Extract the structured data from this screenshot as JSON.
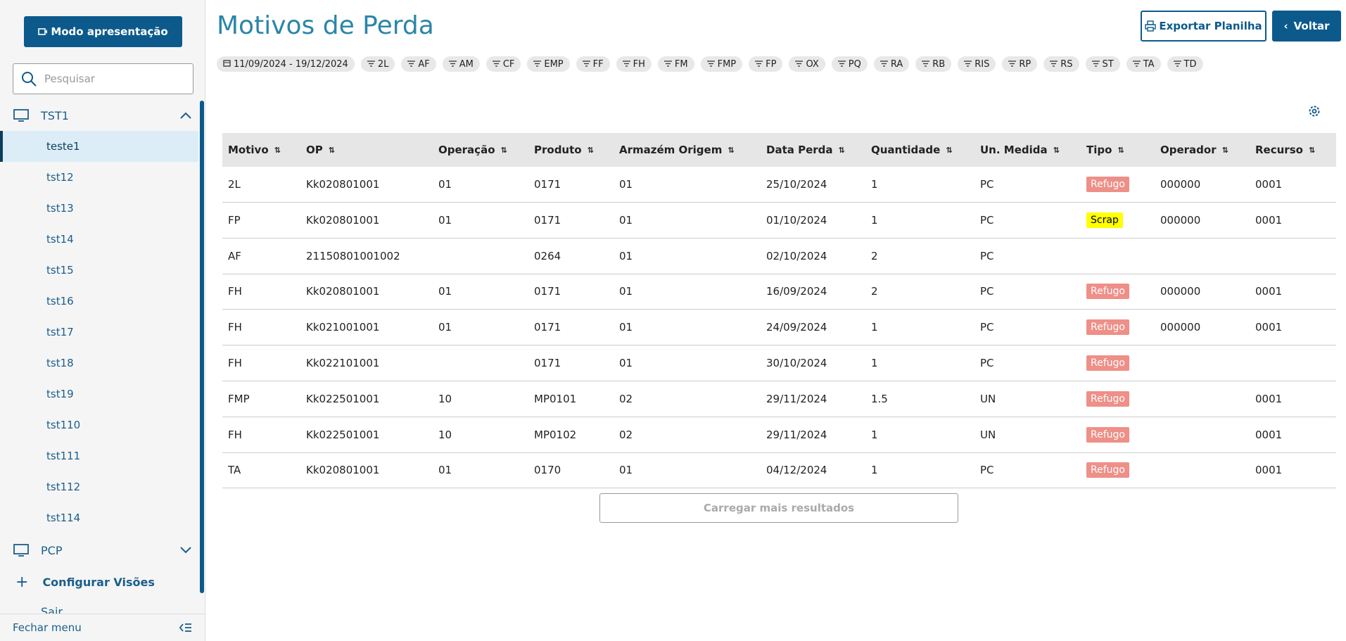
{
  "sidebar": {
    "present_button": "Modo apresentação",
    "search_placeholder": "Pesquisar",
    "group": "TST1",
    "items": [
      "teste1",
      "tst12",
      "tst13",
      "tst14",
      "tst15",
      "tst16",
      "tst17",
      "tst18",
      "tst19",
      "tst110",
      "tst111",
      "tst112",
      "tst114"
    ],
    "group2": "PCP",
    "configure": "Configurar Visões",
    "exit": "Sair",
    "close_menu": "Fechar menu"
  },
  "header": {
    "title": "Motivos de Perda",
    "export_button": "Exportar Planilha",
    "back_button": "Voltar"
  },
  "filters": {
    "date": "11/09/2024 - 19/12/2024",
    "chips": [
      "2L",
      "AF",
      "AM",
      "CF",
      "EMP",
      "FF",
      "FH",
      "FM",
      "FMP",
      "FP",
      "OX",
      "PQ",
      "RA",
      "RB",
      "RIS",
      "RP",
      "RS",
      "ST",
      "TA",
      "TD"
    ]
  },
  "table": {
    "columns": [
      "Motivo",
      "OP",
      "Operação",
      "Produto",
      "Armazém Origem",
      "Data Perda",
      "Quantidade",
      "Un. Medida",
      "Tipo",
      "Operador",
      "Recurso"
    ],
    "rows": [
      [
        "2L",
        "Kk020801001",
        "01",
        "0171",
        "01",
        "25/10/2024",
        "1",
        "PC",
        {
          "text": "Refugo",
          "bg": "#ee8f88",
          "fg": "#ffffff"
        },
        "000000",
        "0001"
      ],
      [
        "FP",
        "Kk020801001",
        "01",
        "0171",
        "01",
        "01/10/2024",
        "1",
        "PC",
        {
          "text": "Scrap",
          "bg": "#ffff00",
          "fg": "#000000"
        },
        "000000",
        "0001"
      ],
      [
        "AF",
        "21150801001002",
        null,
        "0264",
        "01",
        "02/10/2024",
        "2",
        "PC",
        null,
        null,
        null
      ],
      [
        "FH",
        "Kk020801001",
        "01",
        "0171",
        "01",
        "16/09/2024",
        "2",
        "PC",
        {
          "text": "Refugo",
          "bg": "#ee8f88",
          "fg": "#ffffff"
        },
        "000000",
        "0001"
      ],
      [
        "FH",
        "Kk021001001",
        "01",
        "0171",
        "01",
        "24/09/2024",
        "1",
        "PC",
        {
          "text": "Refugo",
          "bg": "#ee8f88",
          "fg": "#ffffff"
        },
        "000000",
        "0001"
      ],
      [
        "FH",
        "Kk022101001",
        null,
        "0171",
        "01",
        "30/10/2024",
        "1",
        "PC",
        {
          "text": "Refugo",
          "bg": "#ee8f88",
          "fg": "#ffffff"
        },
        null,
        null
      ],
      [
        "FMP",
        "Kk022501001",
        "10",
        "MP0101",
        "02",
        "29/11/2024",
        "1.5",
        "UN",
        {
          "text": "Refugo",
          "bg": "#ee8f88",
          "fg": "#ffffff"
        },
        null,
        "0001"
      ],
      [
        "FH",
        "Kk022501001",
        "10",
        "MP0102",
        "02",
        "29/11/2024",
        "1",
        "UN",
        {
          "text": "Refugo",
          "bg": "#ee8f88",
          "fg": "#ffffff"
        },
        null,
        "0001"
      ],
      [
        "TA",
        "Kk020801001",
        "01",
        "0170",
        "01",
        "04/12/2024",
        "1",
        "PC",
        {
          "text": "Refugo",
          "bg": "#ee8f88",
          "fg": "#ffffff"
        },
        null,
        "0001"
      ]
    ],
    "load_more": "Carregar mais resultados"
  }
}
